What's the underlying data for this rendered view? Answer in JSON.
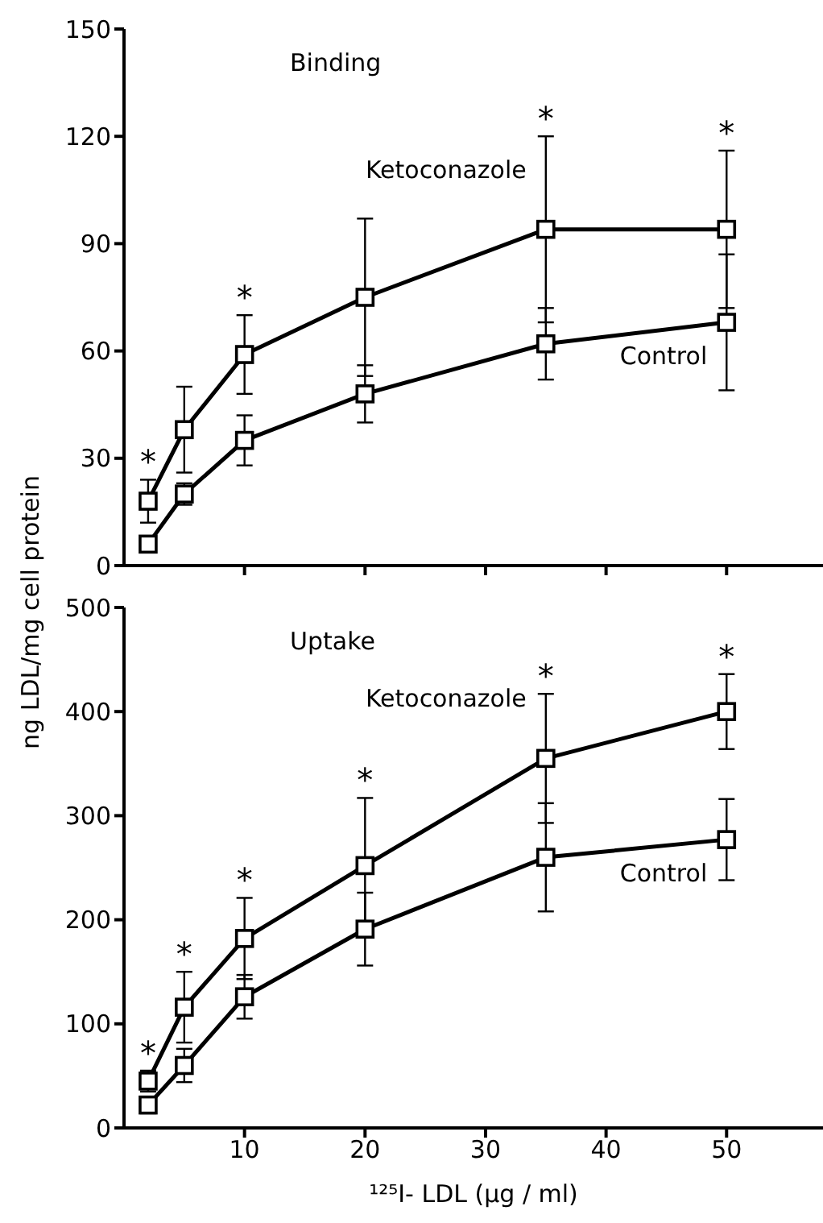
{
  "chart_data": [
    {
      "type": "line",
      "title": "Binding",
      "ylabel": "ng LDL/mg cell protein",
      "x": [
        2,
        5,
        10,
        20,
        35,
        50
      ],
      "xlim": [
        0,
        58
      ],
      "xticks": [
        {
          "value": 10,
          "label": null
        },
        {
          "value": 20,
          "label": null
        },
        {
          "value": 30,
          "label": null
        },
        {
          "value": 40,
          "label": null
        },
        {
          "value": 50,
          "label": null
        }
      ],
      "ylim": [
        0,
        150
      ],
      "yticks": [
        0,
        30,
        60,
        90,
        120,
        150
      ],
      "tick_labels": "y",
      "marker": "square",
      "legend": false,
      "grid": false,
      "series": [
        {
          "name": "Ketoconazole",
          "color": "#000000",
          "values": [
            18,
            38,
            59,
            75,
            94,
            94
          ],
          "errors": [
            6,
            12,
            11,
            22,
            26,
            22
          ]
        },
        {
          "name": "Control",
          "color": "#000000",
          "values": [
            6,
            20,
            35,
            48,
            62,
            68
          ],
          "errors": [
            2,
            3,
            7,
            8,
            10,
            19
          ]
        }
      ],
      "annotations": [
        {
          "text": "*",
          "x": 2,
          "y": 18
        },
        {
          "text": "*",
          "x": 10,
          "y": 59
        },
        {
          "text": "*",
          "x": 35,
          "y": 94
        },
        {
          "text": "*",
          "x": 50,
          "y": 94
        }
      ]
    },
    {
      "type": "line",
      "title": "Uptake",
      "xlabel": "¹²⁵I- LDL (μg / ml)",
      "x": [
        2,
        5,
        10,
        20,
        35,
        50
      ],
      "xlim": [
        0,
        58
      ],
      "xticks": [
        10,
        20,
        30,
        40,
        50
      ],
      "ylim": [
        0,
        500
      ],
      "yticks": [
        0,
        100,
        200,
        300,
        400,
        500
      ],
      "marker": "square",
      "legend": false,
      "grid": false,
      "series": [
        {
          "name": "Ketoconazole",
          "color": "#000000",
          "values": [
            45,
            116,
            182,
            252,
            355,
            400
          ],
          "errors": [
            10,
            34,
            39,
            65,
            62,
            36
          ]
        },
        {
          "name": "Control",
          "color": "#000000",
          "values": [
            22,
            60,
            126,
            191,
            260,
            277
          ],
          "errors": [
            8,
            16,
            21,
            35,
            52,
            39
          ]
        }
      ],
      "annotations": [
        {
          "text": "*",
          "x": 2,
          "y": 45
        },
        {
          "text": "*",
          "x": 5,
          "y": 116
        },
        {
          "text": "*",
          "x": 10,
          "y": 182
        },
        {
          "text": "*",
          "x": 20,
          "y": 252
        },
        {
          "text": "*",
          "x": 35,
          "y": 355
        },
        {
          "text": "*",
          "x": 50,
          "y": 400
        }
      ]
    }
  ]
}
